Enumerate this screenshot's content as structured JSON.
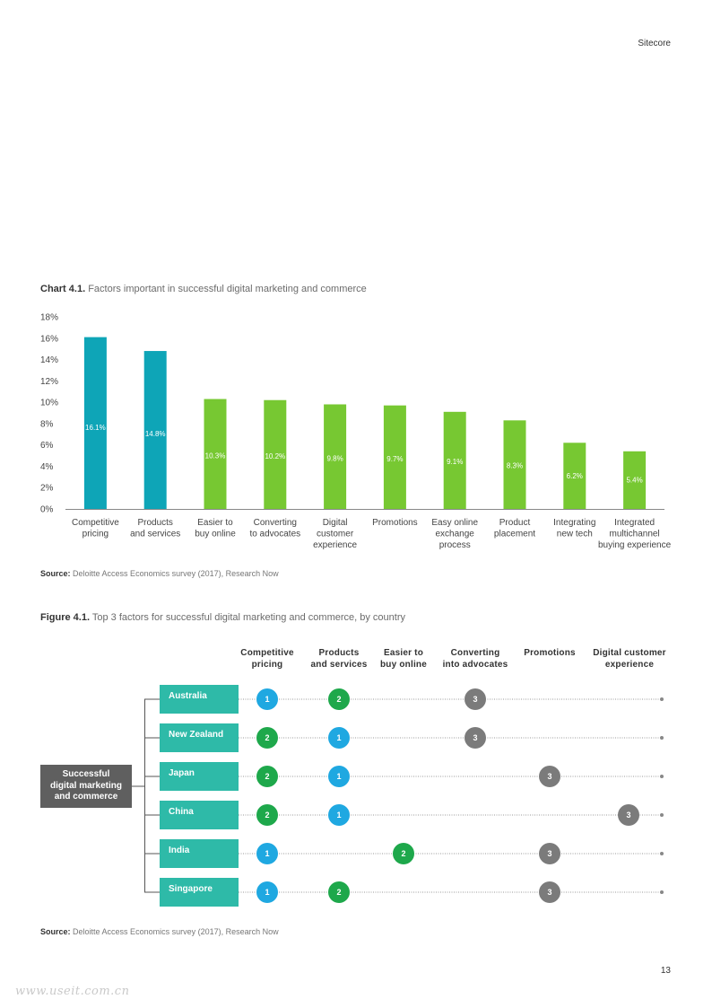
{
  "header": {
    "brand": "Sitecore"
  },
  "footer": {
    "page_number": "13",
    "watermark": "www.useit.com.cn"
  },
  "chart_caption": {
    "prefix": "Chart 4.1.",
    "text": "Factors important in successful digital marketing and commerce"
  },
  "chart_source": {
    "prefix": "Source:",
    "text": "Deloitte Access Economics survey (2017), Research Now"
  },
  "chart_data": {
    "type": "bar",
    "title": "Factors important in successful digital marketing and commerce",
    "categories": [
      [
        "Competitive",
        "pricing"
      ],
      [
        "Products",
        "and services"
      ],
      [
        "Easier to",
        "buy online"
      ],
      [
        "Converting",
        "to advocates"
      ],
      [
        "Digital",
        "customer",
        "experience"
      ],
      [
        "Promotions"
      ],
      [
        "Easy online",
        "exchange",
        "process"
      ],
      [
        "Product",
        "placement"
      ],
      [
        "Integrating",
        "new tech"
      ],
      [
        "Integrated",
        "multichannel",
        "buying experience"
      ]
    ],
    "values": [
      16.1,
      14.8,
      10.3,
      10.2,
      9.8,
      9.7,
      9.1,
      8.3,
      6.2,
      5.4
    ],
    "value_labels": [
      "16.1%",
      "14.8%",
      "10.3%",
      "10.2%",
      "9.8%",
      "9.7%",
      "9.1%",
      "8.3%",
      "6.2%",
      "5.4%"
    ],
    "ylim": [
      0,
      18
    ],
    "yticks": [
      "0%",
      "2%",
      "4%",
      "6%",
      "8%",
      "10%",
      "12%",
      "14%",
      "16%",
      "18%"
    ],
    "grid": false,
    "colors": {
      "highlight": "#0ea5b7",
      "default": "#77c832"
    },
    "highlight_count": 2
  },
  "figure_caption": {
    "prefix": "Figure 4.1.",
    "text": "Top 3 factors for successful digital marketing and commerce, by country"
  },
  "figure_source": {
    "prefix": "Source:",
    "text": "Deloitte Access Economics survey (2017), Research Now"
  },
  "figure": {
    "root": [
      "Successful",
      "digital marketing",
      "and commerce"
    ],
    "columns": [
      [
        "Competitive",
        "pricing"
      ],
      [
        "Products",
        "and services"
      ],
      [
        "Easier to",
        "buy online"
      ],
      [
        "Converting",
        "into advocates"
      ],
      [
        "Promotions"
      ],
      [
        "Digital customer",
        "experience"
      ]
    ],
    "countries": [
      {
        "name": "Australia",
        "ranks": [
          "1",
          "2",
          "",
          "3",
          "",
          ""
        ]
      },
      {
        "name": "New Zealand",
        "ranks": [
          "2",
          "1",
          "",
          "3",
          "",
          ""
        ]
      },
      {
        "name": "Japan",
        "ranks": [
          "2",
          "1",
          "",
          "",
          "3",
          ""
        ]
      },
      {
        "name": "China",
        "ranks": [
          "2",
          "1",
          "",
          "",
          "",
          "3"
        ]
      },
      {
        "name": "India",
        "ranks": [
          "1",
          "",
          "2",
          "",
          "3",
          ""
        ]
      },
      {
        "name": "Singapore",
        "ranks": [
          "1",
          "2",
          "",
          "",
          "3",
          ""
        ]
      }
    ]
  }
}
